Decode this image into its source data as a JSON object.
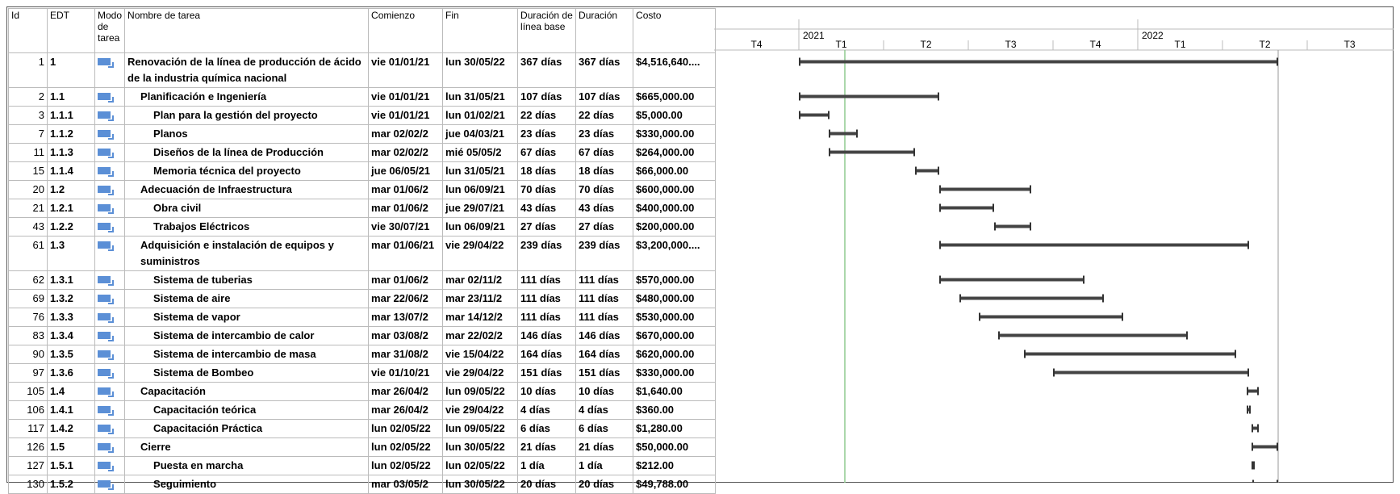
{
  "table": {
    "columns": [
      "Id",
      "EDT",
      "Modo de tarea",
      "Nombre de tarea",
      "Comienzo",
      "Fin",
      "Duración de línea base",
      "Duración",
      "Costo"
    ],
    "rows": [
      [
        "1",
        "1",
        "",
        "Renovación de la línea de producción de ácido de la industria química nacional",
        "vie 01/01/21",
        "lun 30/05/22",
        "367 días",
        "367 días",
        "$4,516,640...."
      ],
      [
        "2",
        "1.1",
        "",
        "Planificación e Ingeniería",
        "vie 01/01/21",
        "lun 31/05/21",
        "107 días",
        "107 días",
        "$665,000.00"
      ],
      [
        "3",
        "1.1.1",
        "",
        "Plan para la gestión del proyecto",
        "vie 01/01/21",
        "lun 01/02/21",
        "22 días",
        "22 días",
        "$5,000.00"
      ],
      [
        "7",
        "1.1.2",
        "",
        "Planos",
        "mar 02/02/2",
        "jue 04/03/21",
        "23 días",
        "23 días",
        "$330,000.00"
      ],
      [
        "11",
        "1.1.3",
        "",
        "Diseños de la línea de Producción",
        "mar 02/02/2",
        "mié 05/05/2",
        "67 días",
        "67 días",
        "$264,000.00"
      ],
      [
        "15",
        "1.1.4",
        "",
        "Memoria técnica del proyecto",
        "jue 06/05/21",
        "lun 31/05/21",
        "18 días",
        "18 días",
        "$66,000.00"
      ],
      [
        "20",
        "1.2",
        "",
        "Adecuación de Infraestructura",
        "mar 01/06/2",
        "lun 06/09/21",
        "70 días",
        "70 días",
        "$600,000.00"
      ],
      [
        "21",
        "1.2.1",
        "",
        "Obra civil",
        "mar 01/06/2",
        "jue 29/07/21",
        "43 días",
        "43 días",
        "$400,000.00"
      ],
      [
        "43",
        "1.2.2",
        "",
        "Trabajos Eléctricos",
        "vie 30/07/21",
        "lun 06/09/21",
        "27 días",
        "27 días",
        "$200,000.00"
      ],
      [
        "61",
        "1.3",
        "",
        "Adquisición e instalación de equipos y suministros",
        "mar 01/06/21",
        "vie 29/04/22",
        "239 días",
        "239 días",
        "$3,200,000...."
      ],
      [
        "62",
        "1.3.1",
        "",
        "Sistema de tuberias",
        "mar 01/06/2",
        "mar 02/11/2",
        "111 días",
        "111 días",
        "$570,000.00"
      ],
      [
        "69",
        "1.3.2",
        "",
        "Sistema de aire",
        "mar 22/06/2",
        "mar 23/11/2",
        "111 días",
        "111 días",
        "$480,000.00"
      ],
      [
        "76",
        "1.3.3",
        "",
        "Sistema de vapor",
        "mar 13/07/2",
        "mar 14/12/2",
        "111 días",
        "111 días",
        "$530,000.00"
      ],
      [
        "83",
        "1.3.4",
        "",
        "Sistema de intercambio de calor",
        "mar 03/08/2",
        "mar 22/02/2",
        "146 días",
        "146 días",
        "$670,000.00"
      ],
      [
        "90",
        "1.3.5",
        "",
        "Sistema de intercambio de masa",
        "mar 31/08/2",
        "vie 15/04/22",
        "164 días",
        "164 días",
        "$620,000.00"
      ],
      [
        "97",
        "1.3.6",
        "",
        "Sistema de Bombeo",
        "vie 01/10/21",
        "vie 29/04/22",
        "151 días",
        "151 días",
        "$330,000.00"
      ],
      [
        "105",
        "1.4",
        "",
        "Capacitación",
        "mar 26/04/2",
        "lun 09/05/22",
        "10 días",
        "10 días",
        "$1,640.00"
      ],
      [
        "106",
        "1.4.1",
        "",
        "Capacitación teórica",
        "mar 26/04/2",
        "vie 29/04/22",
        "4 días",
        "4 días",
        "$360.00"
      ],
      [
        "117",
        "1.4.2",
        "",
        "Capacitación Práctica",
        "lun 02/05/22",
        "lun 09/05/22",
        "6 días",
        "6 días",
        "$1,280.00"
      ],
      [
        "126",
        "1.5",
        "",
        "Cierre",
        "lun 02/05/22",
        "lun 30/05/22",
        "21 días",
        "21 días",
        "$50,000.00"
      ],
      [
        "127",
        "1.5.1",
        "",
        "Puesta en marcha",
        "lun 02/05/22",
        "lun 02/05/22",
        "1 día",
        "1 día",
        "$212.00"
      ],
      [
        "130",
        "1.5.2",
        "",
        "Seguimiento",
        "mar 03/05/2",
        "lun 30/05/22",
        "20 días",
        "20 días",
        "$49,788.00"
      ]
    ]
  },
  "timeline": {
    "years": [
      "2021",
      "2022"
    ],
    "quarters": [
      "T4",
      "T1",
      "T2",
      "T3",
      "T4",
      "T1",
      "T2",
      "T3"
    ]
  }
}
